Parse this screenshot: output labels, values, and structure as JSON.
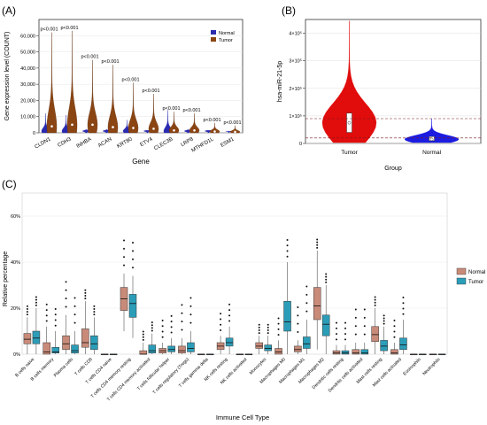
{
  "panels": {
    "a": {
      "label": "(A)",
      "chart_data": {
        "type": "violin",
        "xlabel": "Gene",
        "ylabel": "Gene expression level (COUNT)",
        "ylim": [
          0,
          70000
        ],
        "yticks": [
          "0",
          "10,000",
          "20,000",
          "30,000",
          "40,000",
          "50,000",
          "60,000"
        ],
        "ytick_values": [
          0,
          10000,
          20000,
          30000,
          40000,
          50000,
          60000
        ],
        "legend": [
          "Normal",
          "Tumor"
        ],
        "colors": {
          "Normal": "#2b2bb0",
          "Tumor": "#8b4513"
        },
        "categories": [
          "CLDN1",
          "CDH3",
          "INHBA",
          "ACAN",
          "KRT80",
          "ETV4",
          "CLEC3B",
          "LRP8",
          "MTHFD1L",
          "ESM1"
        ],
        "pvalues": [
          "p<0.001",
          "p<0.001",
          "p<0.001",
          "p<0.001",
          "p<0.001",
          "p<0.001",
          "p<0.001",
          "p<0.001",
          "p<0.001",
          "p<0.001"
        ],
        "tumor_max": [
          62000,
          63000,
          45000,
          42000,
          31000,
          24000,
          13000,
          12000,
          6000,
          4500
        ],
        "tumor_median": [
          4000,
          5000,
          5000,
          3500,
          3000,
          2500,
          1500,
          1500,
          800,
          600
        ],
        "normal_max": [
          12000,
          11000,
          2000,
          2000,
          8000,
          1500,
          14000,
          2000,
          1500,
          1000
        ]
      }
    },
    "b": {
      "label": "(B)",
      "chart_data": {
        "type": "violin",
        "xlabel": "Group",
        "ylabel": "hsa-miR-21-5p",
        "ylim": [
          0,
          450000
        ],
        "yticks": [
          "0",
          "1×10⁵",
          "2×10⁵",
          "3×10⁵",
          "4×10⁵"
        ],
        "ytick_values": [
          0,
          100000,
          200000,
          300000,
          400000
        ],
        "categories": [
          "Tumor",
          "Normal"
        ],
        "colors": {
          "Tumor": "#e00000",
          "Normal": "#1010e0"
        },
        "max": [
          445000,
          90000
        ],
        "median": [
          75000,
          15000
        ],
        "q1": [
          40000,
          10000
        ],
        "q3": [
          110000,
          25000
        ],
        "reference_lines": [
          90000,
          20000
        ]
      }
    },
    "c": {
      "label": "(C)",
      "chart_data": {
        "type": "boxplot",
        "xlabel": "Immune Cell Type",
        "ylabel": "Relative percentage",
        "ylim": [
          0,
          0.7
        ],
        "yticks": [
          "0%",
          "20%",
          "40%",
          "60%"
        ],
        "ytick_values": [
          0,
          0.2,
          0.4,
          0.6
        ],
        "legend": [
          "Normal",
          "Tumor"
        ],
        "colors": {
          "Normal": "#c98b79",
          "Tumor": "#2b9db8"
        },
        "categories": [
          "B cells naive",
          "B cells memory",
          "Plasma cells",
          "T cells CD8",
          "T cells CD4 naive",
          "T cells CD4 memory resting",
          "T cells CD4 memory activated",
          "T cells follicular helper",
          "T cells regulatory (Tregs)",
          "T cells gamma delta",
          "NK cells resting",
          "NK cells activated",
          "Monocytes",
          "Macrophages M0",
          "Macrophages M1",
          "Macrophages M2",
          "Dendritic cells resting",
          "Dendritic cells activated",
          "Mast cells resting",
          "Mast cells activated",
          "Eosinophils",
          "Neutrophils"
        ],
        "series": [
          {
            "name": "Normal",
            "q1": [
              0.045,
              0.0,
              0.02,
              0.03,
              0.0,
              0.19,
              0.0,
              0.005,
              0.005,
              0.0,
              0.02,
              0.0,
              0.025,
              0.0,
              0.01,
              0.15,
              0.0,
              0.0,
              0.055,
              0.0,
              0.0,
              0.0
            ],
            "median": [
              0.065,
              0.01,
              0.045,
              0.05,
              0.0,
              0.24,
              0.0,
              0.015,
              0.015,
              0.0,
              0.035,
              0.0,
              0.035,
              0.01,
              0.02,
              0.21,
              0.005,
              0.005,
              0.085,
              0.005,
              0.0,
              0.0
            ],
            "q3": [
              0.09,
              0.05,
              0.08,
              0.11,
              0.0,
              0.29,
              0.015,
              0.025,
              0.035,
              0.0,
              0.05,
              0.0,
              0.05,
              0.025,
              0.035,
              0.29,
              0.015,
              0.02,
              0.12,
              0.02,
              0.0,
              0.0
            ],
            "min": [
              0.0,
              0.0,
              0.0,
              0.0,
              0.0,
              0.1,
              0.0,
              0.0,
              0.0,
              0.0,
              0.0,
              0.0,
              0.0,
              0.0,
              0.0,
              0.02,
              0.0,
              0.0,
              0.0,
              0.0,
              0.0,
              0.0
            ],
            "max": [
              0.16,
              0.12,
              0.17,
              0.23,
              0.0,
              0.35,
              0.05,
              0.05,
              0.07,
              0.0,
              0.08,
              0.0,
              0.08,
              0.06,
              0.06,
              0.45,
              0.04,
              0.05,
              0.2,
              0.05,
              0.0,
              0.0
            ]
          },
          {
            "name": "Tumor",
            "q1": [
              0.045,
              0.005,
              0.005,
              0.02,
              0.0,
              0.16,
              0.005,
              0.01,
              0.01,
              0.0,
              0.035,
              0.0,
              0.015,
              0.1,
              0.025,
              0.08,
              0.0,
              0.0,
              0.015,
              0.02,
              0.0,
              0.0
            ],
            "median": [
              0.07,
              0.01,
              0.015,
              0.045,
              0.0,
              0.22,
              0.015,
              0.02,
              0.025,
              0.0,
              0.05,
              0.0,
              0.025,
              0.14,
              0.045,
              0.13,
              0.005,
              0.005,
              0.035,
              0.04,
              0.0,
              0.0
            ],
            "q3": [
              0.1,
              0.03,
              0.04,
              0.08,
              0.0,
              0.26,
              0.04,
              0.035,
              0.05,
              0.0,
              0.07,
              0.0,
              0.04,
              0.23,
              0.075,
              0.17,
              0.015,
              0.02,
              0.06,
              0.07,
              0.0,
              0.0
            ],
            "min": [
              0.0,
              0.0,
              0.0,
              0.0,
              0.0,
              0.07,
              0.0,
              0.0,
              0.0,
              0.0,
              0.0,
              0.0,
              0.0,
              0.0,
              0.0,
              0.0,
              0.0,
              0.0,
              0.0,
              0.0,
              0.0,
              0.0
            ],
            "max": [
              0.2,
              0.1,
              0.1,
              0.16,
              0.0,
              0.34,
              0.09,
              0.07,
              0.1,
              0.0,
              0.12,
              0.0,
              0.08,
              0.4,
              0.15,
              0.3,
              0.04,
              0.05,
              0.12,
              0.15,
              0.0,
              0.0
            ]
          }
        ]
      }
    }
  }
}
